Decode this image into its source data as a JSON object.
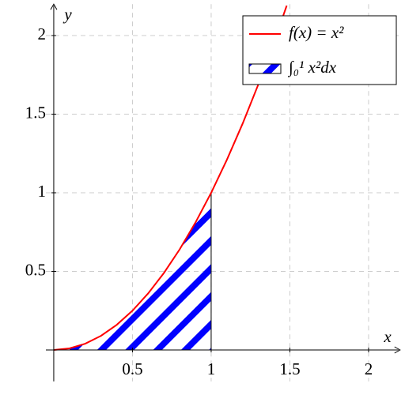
{
  "chart_data": {
    "type": "line",
    "xlabel": "x",
    "ylabel": "y",
    "xlim": [
      -0.05,
      2.2
    ],
    "ylim": [
      -0.2,
      2.2
    ],
    "xticks": [
      0.5,
      1,
      1.5,
      2
    ],
    "yticks": [
      0.5,
      1,
      1.5,
      2
    ],
    "grid": true,
    "legend": "upper right",
    "series": [
      {
        "name": "f(x) = x²",
        "color": "#ff0000",
        "type": "line",
        "x": [
          0,
          0.1,
          0.2,
          0.3,
          0.4,
          0.5,
          0.6,
          0.7,
          0.8,
          0.9,
          1,
          1.1,
          1.2,
          1.3,
          1.4,
          1.48
        ],
        "values": [
          0,
          0.01,
          0.04,
          0.09,
          0.16,
          0.25,
          0.36,
          0.49,
          0.64,
          0.81,
          1,
          1.21,
          1.44,
          1.69,
          1.96,
          2.1904
        ]
      },
      {
        "name": "∫₀¹ x²dx",
        "color": "#0000ff",
        "type": "area",
        "x": [
          0,
          0.1,
          0.2,
          0.3,
          0.4,
          0.5,
          0.6,
          0.7,
          0.8,
          0.9,
          1
        ],
        "values": [
          0,
          0.01,
          0.04,
          0.09,
          0.16,
          0.25,
          0.36,
          0.49,
          0.64,
          0.81,
          1
        ]
      }
    ]
  }
}
